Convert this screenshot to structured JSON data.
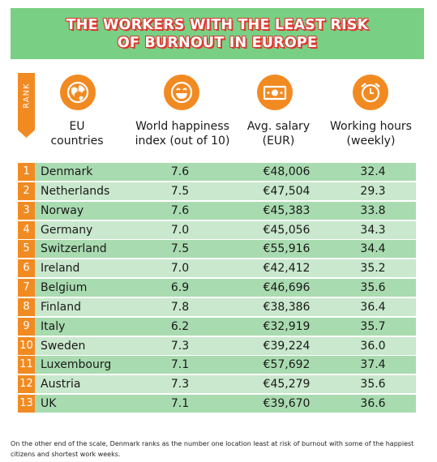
{
  "title_line1": "THE WORKERS WITH THE LEAST RISK",
  "title_line2": "OF BURNOUT IN EUROPE",
  "rank_label": "RANK",
  "columns": {
    "country": "EU countries",
    "happiness": "World happiness index (out of 10)",
    "salary": "Avg. salary (EUR)",
    "hours": "Working hours (weekly)"
  },
  "header_icons": [
    "globe-icon",
    "smiley-icon",
    "banknote-icon",
    "alarm-clock-icon"
  ],
  "colors": {
    "banner": "#79cf84",
    "title_shadow": "#d9382f",
    "accent": "#f28a22",
    "row": "#a9dbb0",
    "row_alt": "#c9e8cd"
  },
  "rows": [
    {
      "rank": "1",
      "country": "Denmark",
      "happiness": "7.6",
      "salary": "€48,006",
      "hours": "32.4"
    },
    {
      "rank": "2",
      "country": "Netherlands",
      "happiness": "7.5",
      "salary": "€47,504",
      "hours": "29.3"
    },
    {
      "rank": "3",
      "country": "Norway",
      "happiness": "7.6",
      "salary": "€45,383",
      "hours": "33.8"
    },
    {
      "rank": "4",
      "country": "Germany",
      "happiness": "7.0",
      "salary": "€45,056",
      "hours": "34.3"
    },
    {
      "rank": "5",
      "country": "Switzerland",
      "happiness": "7.5",
      "salary": "€55,916",
      "hours": "34.4"
    },
    {
      "rank": "6",
      "country": "Ireland",
      "happiness": "7.0",
      "salary": "€42,412",
      "hours": "35.2"
    },
    {
      "rank": "7",
      "country": "Belgium",
      "happiness": "6.9",
      "salary": "€46,696",
      "hours": "35.6"
    },
    {
      "rank": "8",
      "country": "Finland",
      "happiness": "7.8",
      "salary": "€38,386",
      "hours": "36.4"
    },
    {
      "rank": "9",
      "country": "Italy",
      "happiness": "6.2",
      "salary": "€32,919",
      "hours": "35.7"
    },
    {
      "rank": "10",
      "country": "Sweden",
      "happiness": "7.3",
      "salary": "€39,224",
      "hours": "36.0"
    },
    {
      "rank": "11",
      "country": "Luxembourg",
      "happiness": "7.1",
      "salary": "€57,692",
      "hours": "37.4"
    },
    {
      "rank": "12",
      "country": "Austria",
      "happiness": "7.3",
      "salary": "€45,279",
      "hours": "35.6"
    },
    {
      "rank": "13",
      "country": "UK",
      "happiness": "7.1",
      "salary": "€39,670",
      "hours": "36.6"
    }
  ],
  "footnote": "On the other end of the scale, Denmark ranks as the number one location least at risk of burnout with some of the happiest citizens and shortest work weeks."
}
